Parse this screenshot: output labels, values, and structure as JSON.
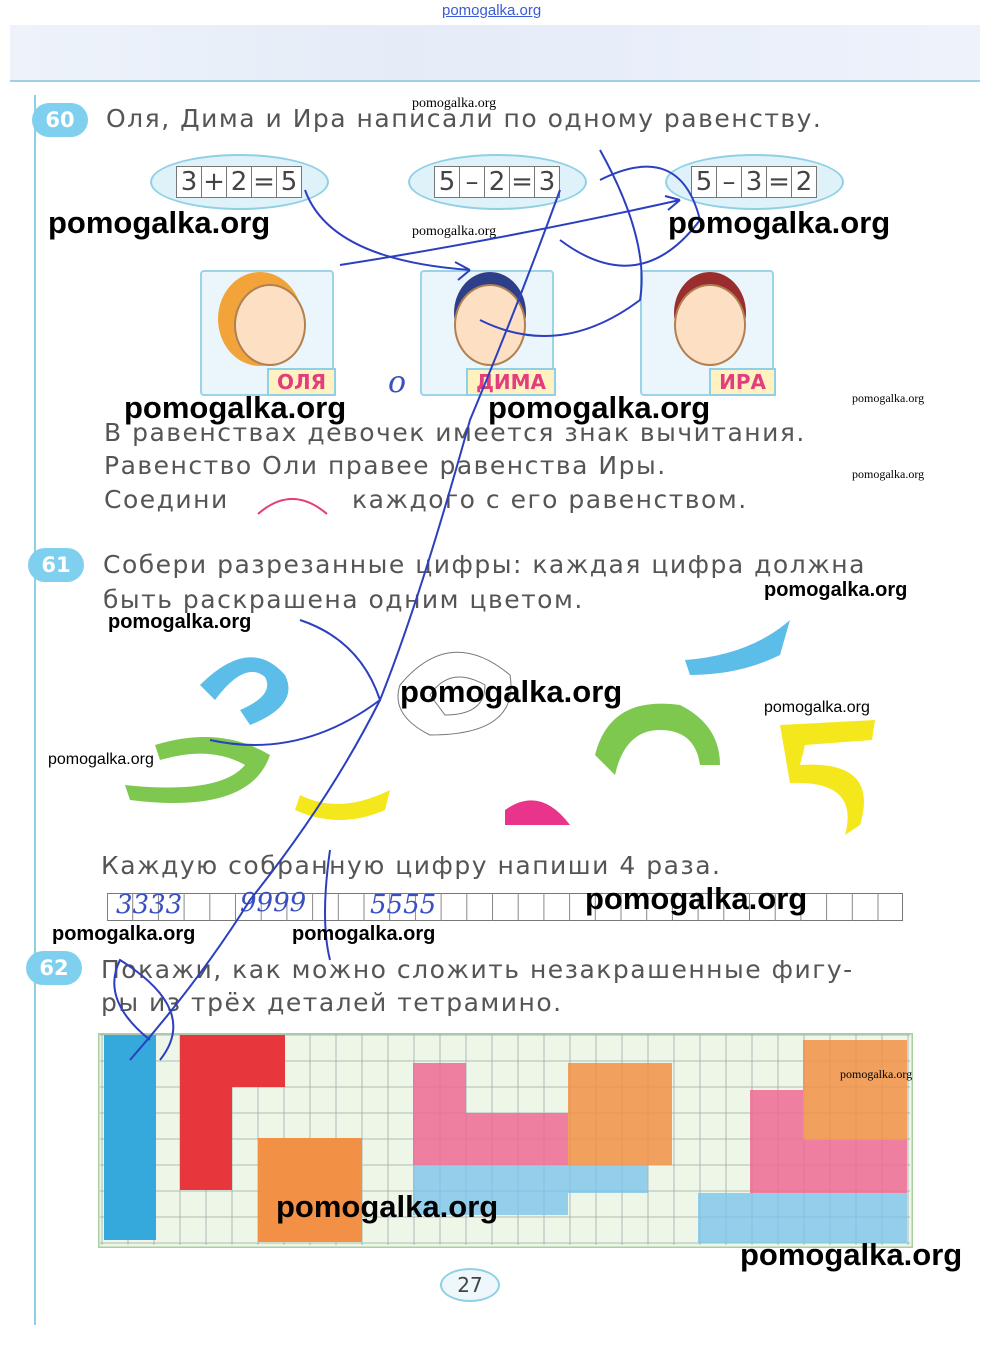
{
  "top_watermark": "pomogalka.org",
  "watermark_text": "pomogalka.org",
  "task60": {
    "number": "60",
    "line1": "Оля, Дима и Ира написали по одному равенству.",
    "equations": [
      [
        "3",
        "+",
        "2",
        "=",
        "5"
      ],
      [
        "5",
        "–",
        "2",
        "=",
        "3"
      ],
      [
        "5",
        "–",
        "3",
        "=",
        "2"
      ]
    ],
    "characters": [
      "ОЛЯ",
      "ДИМА",
      "ИРА"
    ],
    "line2": "В равенствах девочек имеется знак вычитания.",
    "line3": "Равенство Оли правее равенства Иры.",
    "line4a": "Соедини",
    "line4b": "каждого с его равенством.",
    "handwritten_note": "о"
  },
  "task61": {
    "number": "61",
    "line1": "Собери разрезанные цифры: каждая цифра должна",
    "line2": "быть раскрашена одним цветом.",
    "line3": "Каждую собранную цифру напиши 4 раза.",
    "answers": [
      "3333",
      "9999",
      "5555"
    ],
    "piece_colors": {
      "blue": "#5bbde8",
      "green": "#7ec850",
      "yellow": "#f4e81c",
      "pink": "#e8348a"
    }
  },
  "task62": {
    "number": "62",
    "line1": "Покажи, как можно сложить незакрашенные фигу-",
    "line2": "ры из трёх деталей тетрамино.",
    "colors": {
      "blue": "#35a8dc",
      "red": "#e8373c",
      "orange": "#f29045",
      "pink": "#ee6a94",
      "light_blue": "#7cc4ea"
    }
  },
  "page_number": "27"
}
